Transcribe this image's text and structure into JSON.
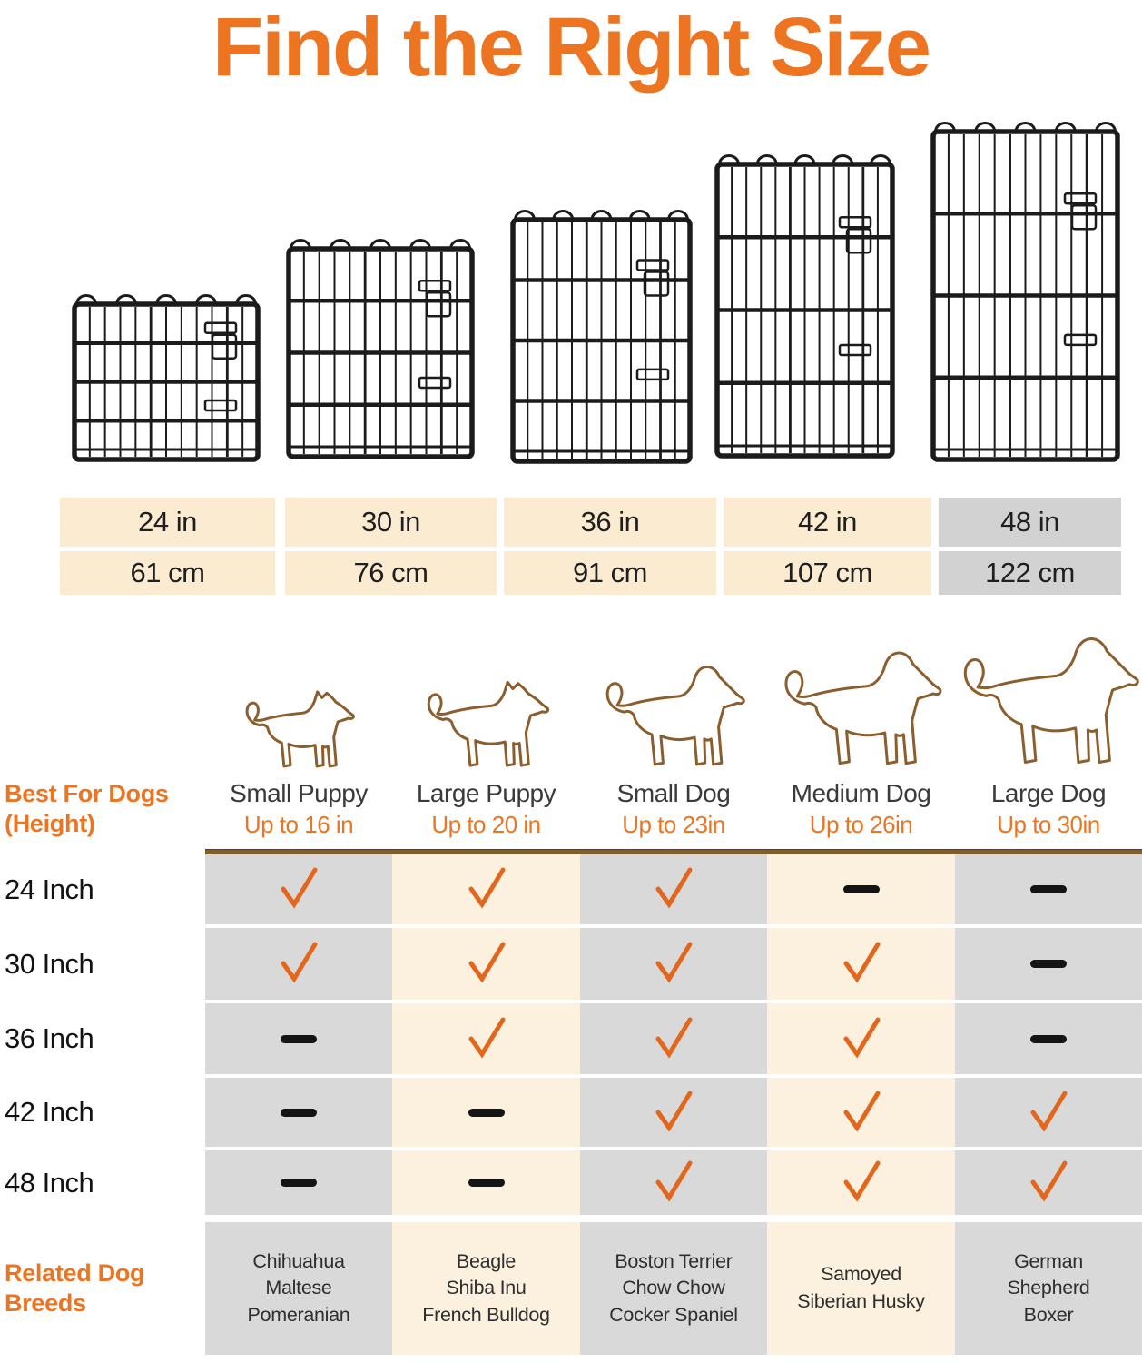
{
  "title": "Find the Right Size",
  "chart_data": {
    "type": "table",
    "title": "Find the Right Size",
    "size_options_in": [
      "24 in",
      "30 in",
      "36 in",
      "42 in",
      "48 in"
    ],
    "size_options_cm": [
      "61 cm",
      "76 cm",
      "91 cm",
      "107 cm",
      "122 cm"
    ],
    "highlighted_size_column": 4,
    "columns": [
      "Small Puppy (Up to 16 in)",
      "Large Puppy (Up to 20 in)",
      "Small Dog (Up to 23in)",
      "Medium Dog (Up to 26in)",
      "Large Dog (Up to 30in)"
    ],
    "rows": [
      {
        "label": "24 Inch",
        "values": [
          "check",
          "check",
          "check",
          "dash",
          "dash"
        ]
      },
      {
        "label": "30 Inch",
        "values": [
          "check",
          "check",
          "check",
          "check",
          "dash"
        ]
      },
      {
        "label": "36 Inch",
        "values": [
          "dash",
          "check",
          "check",
          "check",
          "dash"
        ]
      },
      {
        "label": "42 Inch",
        "values": [
          "dash",
          "dash",
          "check",
          "check",
          "check"
        ]
      },
      {
        "label": "48 Inch",
        "values": [
          "dash",
          "dash",
          "check",
          "check",
          "check"
        ]
      }
    ]
  },
  "size_table": {
    "inches": [
      "24 in",
      "30 in",
      "36 in",
      "42 in",
      "48 in"
    ],
    "centimeters": [
      "61 cm",
      "76 cm",
      "91 cm",
      "107 cm",
      "122 cm"
    ]
  },
  "best_for": {
    "header_lines": [
      "Best For Dogs",
      "(Height)"
    ],
    "columns": [
      {
        "name": "Small Puppy",
        "height": "Up to 16 in"
      },
      {
        "name": "Large Puppy",
        "height": "Up to 20 in"
      },
      {
        "name": "Small Dog",
        "height": "Up to 23in"
      },
      {
        "name": "Medium Dog",
        "height": "Up to 26in"
      },
      {
        "name": "Large Dog",
        "height": "Up to 30in"
      }
    ]
  },
  "related_breeds": {
    "header_lines": [
      "Related Dog",
      "Breeds"
    ],
    "columns": [
      [
        "Chihuahua",
        "Maltese",
        "Pomeranian"
      ],
      [
        "Beagle",
        "Shiba Inu",
        "French Bulldog"
      ],
      [
        "Boston Terrier",
        "Chow Chow",
        "Cocker Spaniel"
      ],
      [
        "Samoyed",
        "Siberian Husky"
      ],
      [
        "German",
        "Shepherd",
        "Boxer"
      ]
    ]
  },
  "icons": {
    "check": "check-icon",
    "dash": "dash-icon",
    "dog": "dog-silhouette-icon",
    "crate": "wire-crate-panel-icon"
  },
  "colors": {
    "accent": "#ED7421",
    "check": "#E2671C",
    "table_cream": "#FBEBD0",
    "table_gray": "#D2D2D2",
    "grid_cream": "#FCF1DE",
    "grid_gray": "#D9D9D9",
    "divider_brown": "#7E5E2C",
    "dog_outline": "#8B5E2E",
    "crate_wire": "#1B1B1B"
  }
}
